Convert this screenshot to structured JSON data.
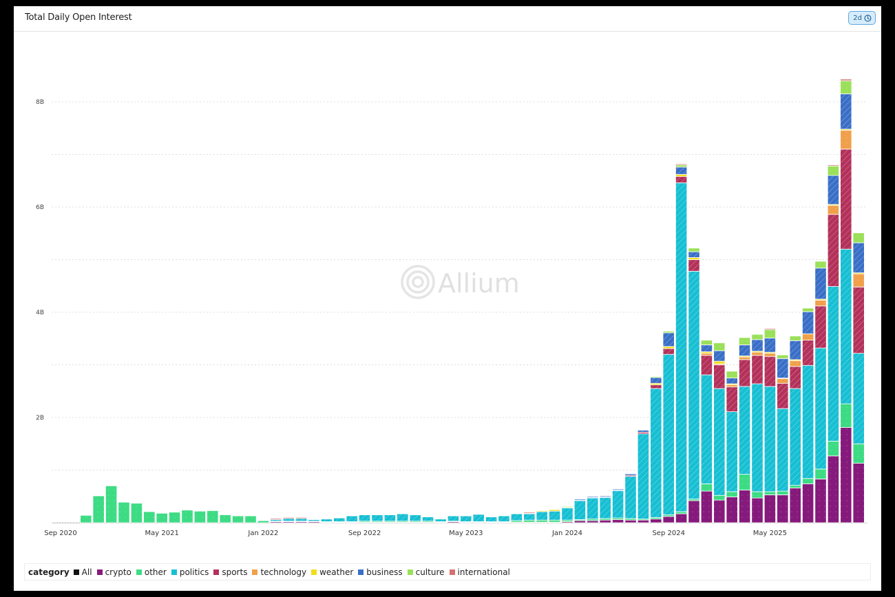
{
  "header": {
    "title": "Total Daily Open Interest",
    "refresh_badge": "2d"
  },
  "watermark": "Allium",
  "legend": {
    "label": "category",
    "items": [
      {
        "name": "All",
        "color": "#111111"
      },
      {
        "name": "crypto",
        "color": "#861a7c"
      },
      {
        "name": "other",
        "color": "#3ddc84"
      },
      {
        "name": "politics",
        "color": "#17bfd3"
      },
      {
        "name": "sports",
        "color": "#b3315a"
      },
      {
        "name": "technology",
        "color": "#f0a04b"
      },
      {
        "name": "weather",
        "color": "#f2dd1c"
      },
      {
        "name": "business",
        "color": "#3a6fc7"
      },
      {
        "name": "culture",
        "color": "#9be05a"
      },
      {
        "name": "international",
        "color": "#d6706f"
      }
    ]
  },
  "chart_data": {
    "type": "bar",
    "stacked": true,
    "title": "Total Daily Open Interest",
    "xlabel": "",
    "ylabel": "",
    "ylim": [
      0,
      9000000000
    ],
    "yticks": [
      "2B",
      "4B",
      "6B",
      "8B"
    ],
    "xticks": [
      "Sep 2020",
      "May 2021",
      "Jan 2022",
      "Sep 2022",
      "May 2023",
      "Jan 2024",
      "Sep 2024",
      "May 2025"
    ],
    "grid": true,
    "legend_position": "bottom",
    "categories": [
      "Nov 2020",
      "Dec 2020",
      "Jan 2021",
      "Feb 2021",
      "Mar 2021",
      "Apr 2021",
      "May 2021",
      "Jun 2021",
      "Jul 2021",
      "Aug 2021",
      "Sep 2021",
      "Oct 2021",
      "Nov 2021",
      "Dec 2021",
      "Jan 2022",
      "Feb 2022",
      "Mar 2022",
      "Apr 2022",
      "May 2022",
      "Jun 2022",
      "Jul 2022",
      "Aug 2022",
      "Sep 2022",
      "Oct 2022",
      "Nov 2022",
      "Dec 2022",
      "Jan 2023",
      "Feb 2023",
      "Mar 2023",
      "Apr 2023",
      "May 2023",
      "Jun 2023",
      "Jul 2023",
      "Aug 2023",
      "Sep 2023",
      "Oct 2023",
      "Nov 2023",
      "Dec 2023",
      "Jan 2024",
      "Feb 2024",
      "Mar 2024",
      "Apr 2024",
      "May 2024",
      "Jun 2024",
      "Jul 2024",
      "Aug 2024",
      "Sep 2024",
      "Oct 2024",
      "Nov 2024",
      "Dec 2024",
      "Jan 2025",
      "Feb 2025",
      "Mar 2025",
      "Apr 2025",
      "May 2025",
      "Jun 2025",
      "Jul 2025",
      "Aug 2025",
      "Sep 2025",
      "Oct 2025",
      "Nov 2025",
      "Dec 2025"
    ],
    "units": "B",
    "series": [
      {
        "name": "crypto",
        "values": [
          0,
          0,
          0,
          0,
          0,
          0,
          0,
          0,
          0,
          0,
          0,
          0,
          0,
          0,
          0,
          0.02,
          0.02,
          0.02,
          0.02,
          0.01,
          0.01,
          0.01,
          0.01,
          0.01,
          0.01,
          0.01,
          0.01,
          0.01,
          0.01,
          0.02,
          0.01,
          0.01,
          0.01,
          0.01,
          0.01,
          0.01,
          0.01,
          0.01,
          0.02,
          0.04,
          0.04,
          0.05,
          0.06,
          0.05,
          0.05,
          0.07,
          0.12,
          0.17,
          0.42,
          0.6,
          0.43,
          0.49,
          0.62,
          0.47,
          0.53,
          0.53,
          0.66,
          0.74,
          0.83,
          1.27,
          1.81,
          1.13
        ]
      },
      {
        "name": "other",
        "values": [
          0.14,
          0.51,
          0.7,
          0.39,
          0.37,
          0.21,
          0.18,
          0.2,
          0.24,
          0.22,
          0.23,
          0.15,
          0.13,
          0.13,
          0.04,
          0.01,
          0.01,
          0.01,
          0.01,
          0.01,
          0.01,
          0.01,
          0.02,
          0.02,
          0.02,
          0.02,
          0.02,
          0.02,
          0.01,
          0.01,
          0.01,
          0.01,
          0.01,
          0.01,
          0.03,
          0.04,
          0.04,
          0.04,
          0.03,
          0.02,
          0.03,
          0.03,
          0.03,
          0.03,
          0.02,
          0.03,
          0.03,
          0.04,
          0.03,
          0.14,
          0.09,
          0.1,
          0.3,
          0.12,
          0.06,
          0.07,
          0.05,
          0.1,
          0.19,
          0.28,
          0.45,
          0.37
        ]
      },
      {
        "name": "politics",
        "values": [
          0,
          0,
          0,
          0,
          0,
          0,
          0,
          0,
          0,
          0,
          0,
          0,
          0,
          0,
          0.01,
          0.03,
          0.05,
          0.05,
          0.03,
          0.05,
          0.07,
          0.11,
          0.12,
          0.12,
          0.12,
          0.14,
          0.12,
          0.08,
          0.05,
          0.1,
          0.11,
          0.14,
          0.09,
          0.11,
          0.13,
          0.12,
          0.16,
          0.17,
          0.23,
          0.36,
          0.4,
          0.4,
          0.52,
          0.8,
          1.62,
          2.45,
          3.05,
          6.25,
          4.33,
          2.07,
          2.03,
          1.52,
          1.67,
          2.05,
          2.0,
          1.57,
          1.84,
          2.15,
          2.3,
          2.94,
          2.94,
          1.72
        ]
      },
      {
        "name": "sports",
        "values": [
          0,
          0,
          0,
          0,
          0,
          0,
          0,
          0,
          0,
          0,
          0,
          0,
          0,
          0,
          0,
          0,
          0,
          0,
          0,
          0,
          0,
          0,
          0,
          0,
          0,
          0,
          0,
          0,
          0,
          0,
          0,
          0,
          0,
          0,
          0,
          0,
          0,
          0,
          0,
          0.01,
          0.01,
          0.01,
          0.01,
          0.02,
          0.03,
          0.07,
          0.11,
          0.12,
          0.22,
          0.37,
          0.45,
          0.47,
          0.51,
          0.54,
          0.57,
          0.48,
          0.42,
          0.48,
          0.8,
          1.37,
          1.9,
          1.26
        ]
      },
      {
        "name": "technology",
        "values": [
          0,
          0,
          0,
          0,
          0,
          0,
          0,
          0,
          0,
          0,
          0,
          0,
          0,
          0,
          0,
          0,
          0,
          0,
          0,
          0,
          0,
          0,
          0,
          0,
          0,
          0,
          0,
          0,
          0,
          0,
          0,
          0,
          0,
          0,
          0,
          0,
          0,
          0,
          0,
          0,
          0,
          0,
          0,
          0,
          0,
          0,
          0,
          0,
          0,
          0.04,
          0.02,
          0.04,
          0.05,
          0.06,
          0.06,
          0.09,
          0.11,
          0.12,
          0.11,
          0.17,
          0.36,
          0.25
        ]
      },
      {
        "name": "weather",
        "values": [
          0,
          0,
          0,
          0,
          0,
          0,
          0,
          0,
          0,
          0,
          0,
          0,
          0,
          0,
          0,
          0,
          0,
          0,
          0,
          0,
          0,
          0,
          0,
          0,
          0,
          0,
          0,
          0,
          0,
          0,
          0,
          0,
          0,
          0,
          0,
          0.01,
          0.02,
          0.03,
          0.01,
          0,
          0,
          0,
          0,
          0,
          0,
          0.03,
          0.04,
          0.04,
          0.04,
          0.03,
          0.05,
          0.02,
          0.02,
          0.02,
          0.02,
          0.01,
          0.02,
          0,
          0.02,
          0.02,
          0.02,
          0.02
        ]
      },
      {
        "name": "business",
        "values": [
          0,
          0,
          0,
          0,
          0,
          0,
          0,
          0,
          0,
          0,
          0,
          0,
          0,
          0,
          0,
          0,
          0,
          0,
          0,
          0,
          0,
          0,
          0,
          0,
          0,
          0,
          0,
          0,
          0,
          0,
          0,
          0,
          0,
          0,
          0,
          0,
          0,
          0,
          0,
          0.02,
          0.02,
          0.02,
          0.02,
          0.03,
          0.04,
          0.11,
          0.26,
          0.14,
          0.11,
          0.13,
          0.2,
          0.11,
          0.21,
          0.22,
          0.27,
          0.37,
          0.36,
          0.42,
          0.59,
          0.55,
          0.67,
          0.57
        ]
      },
      {
        "name": "culture",
        "values": [
          0,
          0,
          0,
          0,
          0,
          0,
          0,
          0,
          0,
          0,
          0,
          0,
          0,
          0,
          0,
          0,
          0,
          0,
          0,
          0,
          0,
          0,
          0,
          0,
          0,
          0,
          0,
          0,
          0,
          0,
          0,
          0,
          0,
          0,
          0,
          0,
          0,
          0,
          0.02,
          0.01,
          0.01,
          0.01,
          0.01,
          0,
          0.01,
          0.02,
          0.03,
          0.04,
          0.07,
          0.09,
          0.15,
          0.13,
          0.14,
          0.1,
          0.16,
          0.07,
          0.09,
          0.07,
          0.13,
          0.18,
          0.25,
          0.19
        ]
      },
      {
        "name": "international",
        "values": [
          0,
          0,
          0,
          0,
          0,
          0,
          0,
          0,
          0,
          0,
          0,
          0,
          0,
          0,
          0.01,
          0.02,
          0.02,
          0.02,
          0.01,
          0.01,
          0.01,
          0.01,
          0.01,
          0.01,
          0.01,
          0.01,
          0.01,
          0.01,
          0.01,
          0.01,
          0.01,
          0.01,
          0.01,
          0.01,
          0.01,
          0.02,
          0.01,
          0.01,
          0.01,
          0.01,
          0.01,
          0.01,
          0.01,
          0.01,
          0.01,
          0.01,
          0.01,
          0.02,
          0.01,
          0.01,
          0.01,
          0.01,
          0.01,
          0.01,
          0.02,
          0.01,
          0.01,
          0.01,
          0.01,
          0.02,
          0.03,
          0.01
        ]
      }
    ]
  }
}
